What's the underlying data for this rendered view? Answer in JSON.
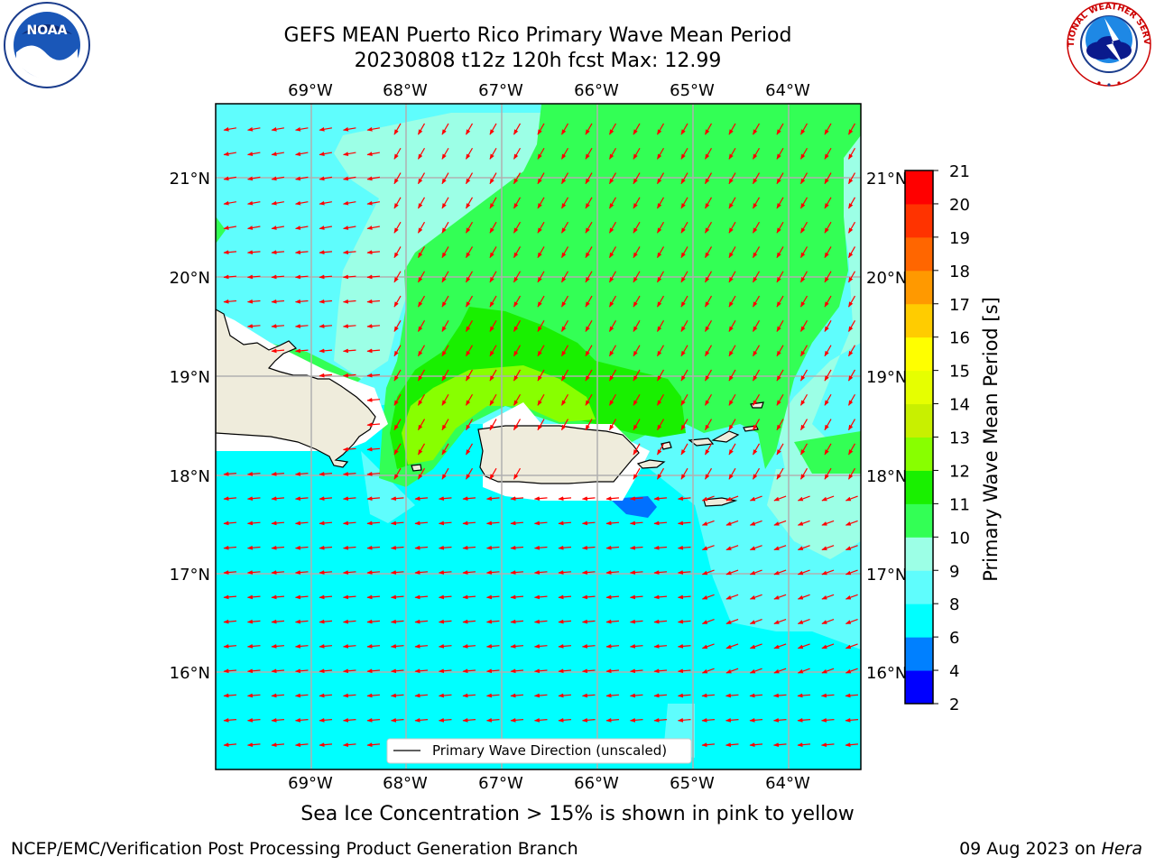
{
  "header": {
    "title_line1": "GEFS MEAN Puerto Rico Primary Wave Mean Period",
    "title_line2": "20230808 t12z 120h fcst   Max: 12.99"
  },
  "map": {
    "lon_labels": [
      "69°W",
      "68°W",
      "67°W",
      "66°W",
      "65°W",
      "64°W"
    ],
    "lat_labels": [
      "21°N",
      "20°N",
      "19°N",
      "18°N",
      "17°N",
      "16°N"
    ],
    "legend_label": "Primary Wave Direction (unscaled)",
    "colors": {
      "land": "#efecdc",
      "arrow": "#ff0000",
      "grid": "#b0b0b0"
    }
  },
  "colorbar": {
    "label": "Primary Wave Mean Period [s]",
    "ticks": [
      "2",
      "4",
      "6",
      "8",
      "9",
      "10",
      "11",
      "12",
      "13",
      "14",
      "15",
      "16",
      "17",
      "18",
      "19",
      "20",
      "21"
    ],
    "colors": [
      "#0000ff",
      "#0080ff",
      "#00ffff",
      "#5ffdfd",
      "#9cffe6",
      "#33ff55",
      "#19f000",
      "#88ff00",
      "#c8f000",
      "#e6ff00",
      "#ffff00",
      "#ffcc00",
      "#ff9900",
      "#ff6600",
      "#ff3300",
      "#ff0000"
    ]
  },
  "caption": "Sea Ice Concentration > 15% is shown in pink to yellow",
  "footer": {
    "left": "NCEP/EMC/Verification Post Processing Product Generation Branch",
    "right_prefix": "09 Aug 2023 on ",
    "right_host": "Hera"
  },
  "logos": {
    "noaa": "NOAA",
    "nws": "NATIONAL WEATHER SERVICE"
  }
}
